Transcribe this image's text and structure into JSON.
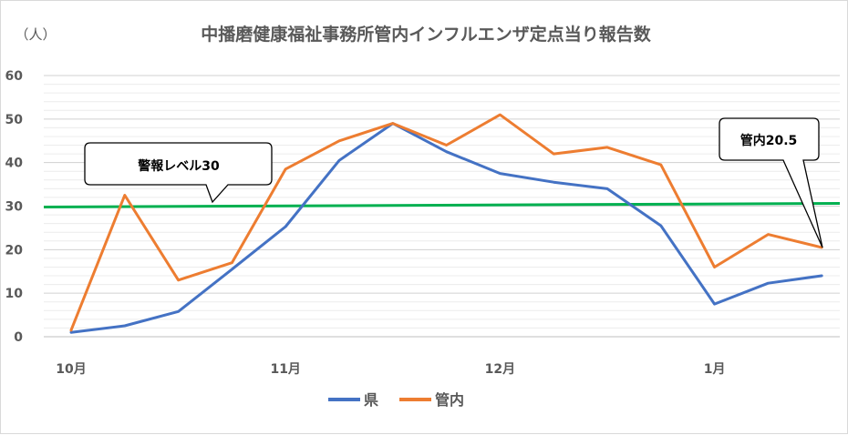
{
  "chart_data": {
    "type": "line",
    "title": "中播磨健康福祉事務所管内インフルエンザ定点当り報告数",
    "ylabel": "（人）",
    "xlabel": "",
    "ylim": [
      0,
      60
    ],
    "yticks": [
      0,
      10,
      20,
      30,
      40,
      50,
      60
    ],
    "x_tick_labels": [
      "10月",
      "11月",
      "12月",
      "1月"
    ],
    "grid": true,
    "legend_position": "bottom",
    "series": [
      {
        "name": "県",
        "color": "#4472C4",
        "values": [
          1.0,
          2.5,
          5.8,
          15.5,
          25.3,
          40.5,
          49.0,
          42.5,
          37.5,
          35.5,
          34.0,
          25.5,
          7.5,
          12.3,
          14.0
        ]
      },
      {
        "name": "管内",
        "color": "#ED7D31",
        "values": [
          1.5,
          32.5,
          13.0,
          17.0,
          38.5,
          45.0,
          49.0,
          44.0,
          51.0,
          42.0,
          43.5,
          39.5,
          16.0,
          23.5,
          20.5
        ]
      }
    ],
    "reference_line": {
      "label": "警報レベル30",
      "value": 30,
      "color": "#00B050"
    },
    "annotations": [
      {
        "text": "警報レベル30"
      },
      {
        "text": "管内20.5"
      }
    ]
  }
}
